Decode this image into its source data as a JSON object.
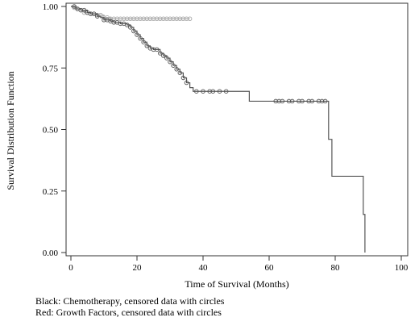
{
  "chart_data": {
    "type": "line",
    "subtype": "kaplan-meier-step",
    "xlabel": "Time of Survival (Months)",
    "ylabel": "Survival Distribution Function",
    "xlim": [
      0,
      100
    ],
    "ylim": [
      0,
      1
    ],
    "xticks": [
      0,
      20,
      40,
      60,
      80,
      100
    ],
    "yticks": [
      0.0,
      0.25,
      0.5,
      0.75,
      1.0
    ],
    "xtick_labels": [
      "0",
      "20",
      "40",
      "60",
      "80",
      "100"
    ],
    "ytick_labels": [
      "0.00",
      "0.25",
      "0.50",
      "0.75",
      "1.00"
    ],
    "grid": false,
    "legend": "none",
    "series": [
      {
        "color": "#555555",
        "censor_marker": "circle",
        "x": [
          0,
          1.5,
          3,
          5,
          6,
          8,
          9,
          10,
          12,
          13,
          15,
          17,
          18,
          19,
          20,
          21,
          22,
          23,
          24,
          25,
          27,
          28,
          29,
          30,
          31,
          32,
          33,
          34,
          35,
          36,
          37,
          54,
          77.5,
          78,
          79,
          88.5,
          89
        ],
        "y": [
          1.0,
          0.99,
          0.985,
          0.975,
          0.97,
          0.96,
          0.955,
          0.945,
          0.94,
          0.935,
          0.93,
          0.925,
          0.915,
          0.9,
          0.885,
          0.87,
          0.855,
          0.84,
          0.83,
          0.825,
          0.81,
          0.8,
          0.79,
          0.775,
          0.76,
          0.745,
          0.73,
          0.71,
          0.69,
          0.67,
          0.655,
          0.615,
          0.615,
          0.46,
          0.31,
          0.155,
          0.0
        ],
        "censored_x": [
          1,
          2,
          3,
          4,
          5,
          6,
          7,
          8,
          10,
          11,
          12,
          13,
          14,
          15,
          16,
          17,
          18,
          19,
          20,
          21,
          22,
          23,
          24,
          25,
          26,
          27,
          28,
          29,
          30,
          31,
          32,
          33,
          34,
          35,
          38,
          40,
          42,
          43,
          45,
          47,
          62,
          63,
          64,
          66,
          67,
          69,
          70,
          72,
          73,
          75,
          76,
          77
        ]
      },
      {
        "color": "#aaaaaa",
        "censor_marker": "circle",
        "x": [
          0,
          1,
          2,
          3,
          4,
          6,
          8,
          10,
          12,
          36
        ],
        "y": [
          1.0,
          0.995,
          0.99,
          0.985,
          0.975,
          0.97,
          0.965,
          0.955,
          0.95,
          0.95
        ],
        "censored_x": [
          1,
          2,
          3,
          4,
          5,
          6,
          7,
          8,
          9,
          10,
          11,
          12,
          13,
          14,
          15,
          16,
          17,
          18,
          19,
          20,
          21,
          22,
          23,
          24,
          25,
          26,
          27,
          28,
          29,
          30,
          31,
          32,
          33,
          34,
          35,
          36
        ]
      }
    ]
  },
  "notes": {
    "line1": "Black: Chemotherapy, censored data with circles",
    "line2": "Red: Growth Factors, censored data with circles"
  }
}
